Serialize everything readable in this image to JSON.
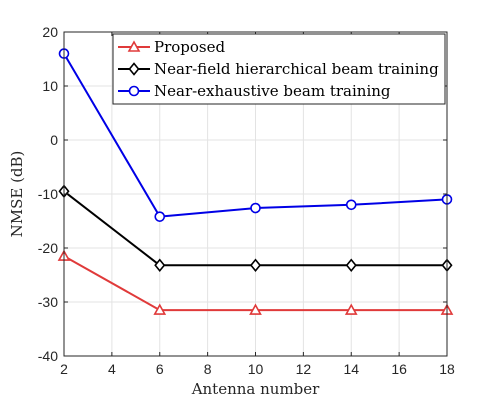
{
  "chart_data": {
    "type": "line",
    "title": "",
    "xlabel": "Antenna number",
    "ylabel": "NMSE (dB)",
    "xlim": [
      2,
      18
    ],
    "ylim": [
      -40,
      20
    ],
    "xticks": [
      2,
      4,
      6,
      8,
      10,
      12,
      14,
      16,
      18
    ],
    "yticks": [
      -40,
      -30,
      -20,
      -10,
      0,
      10,
      20
    ],
    "grid": true,
    "legend_position": "top-right",
    "x": [
      2,
      6,
      10,
      14,
      18
    ],
    "series": [
      {
        "name": "Proposed",
        "values": [
          -21.5,
          -31.5,
          -31.5,
          -31.5,
          -31.5
        ],
        "color": "#e03a3a",
        "marker": "triangle"
      },
      {
        "name": "Near-field hierarchical beam training",
        "values": [
          -9.5,
          -23.2,
          -23.2,
          -23.2,
          -23.2
        ],
        "color": "#000000",
        "marker": "diamond"
      },
      {
        "name": "Near-exhaustive beam training",
        "values": [
          16.0,
          -14.2,
          -12.6,
          -12.0,
          -11.0
        ],
        "color": "#0000e6",
        "marker": "circle"
      }
    ]
  }
}
